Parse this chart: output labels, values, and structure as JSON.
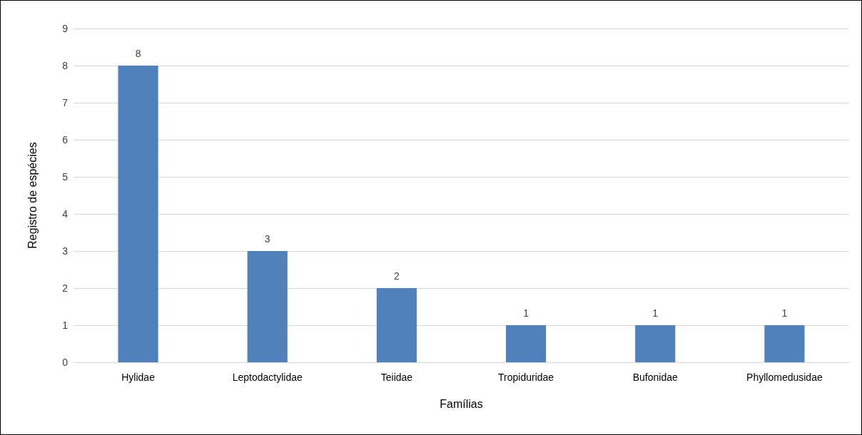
{
  "chart_data": {
    "type": "bar",
    "xlabel": "Famílias",
    "ylabel": "Registro de espécies",
    "categories": [
      "Hylidae",
      "Leptodactylidae",
      "Teiidae",
      "Tropiduridae",
      "Bufonidae",
      "Phyllomedusidae"
    ],
    "values": [
      8,
      3,
      2,
      1,
      1,
      1
    ],
    "color": "#4f81bd",
    "ylim": [
      0,
      9
    ],
    "yticks": [
      0,
      1,
      2,
      3,
      4,
      5,
      6,
      7,
      8,
      9
    ],
    "grid": "y",
    "data_labels": true
  }
}
